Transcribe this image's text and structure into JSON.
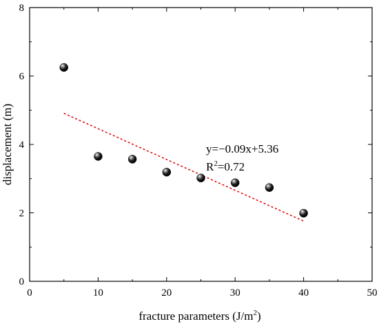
{
  "chart_data": {
    "type": "scatter",
    "x": [
      5,
      10,
      15,
      20,
      25,
      30,
      35,
      40
    ],
    "y": [
      6.25,
      3.65,
      3.57,
      3.19,
      3.02,
      2.88,
      2.74,
      1.99
    ],
    "xlabel_base": "fracture parameters (J/m",
    "xlabel_sup": "2",
    "xlabel_tail": ")",
    "ylabel": "displacement (m)",
    "xlim": [
      0,
      50
    ],
    "ylim": [
      0,
      8
    ],
    "xticks": [
      "0",
      "10",
      "20",
      "30",
      "40",
      "50"
    ],
    "yticks": [
      "0",
      "2",
      "4",
      "6",
      "8"
    ],
    "grid": false,
    "trendline": {
      "slope": -0.09,
      "intercept": 5.36,
      "x_range": [
        5,
        40
      ],
      "color": "#e00000",
      "style": "dashed"
    },
    "annotation": {
      "equation": "y=−0.09x+5.36",
      "r2_base": "R",
      "r2_sup": "2",
      "r2_tail": "=0.72"
    },
    "marker_color": "#000000"
  }
}
